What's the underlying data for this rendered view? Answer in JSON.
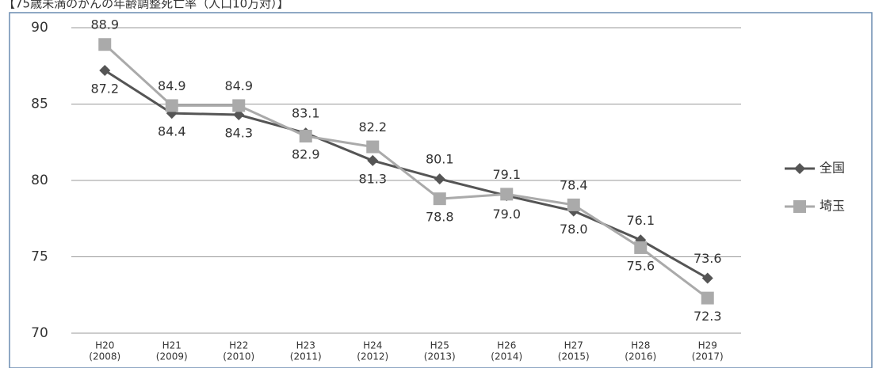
{
  "chart_data": {
    "type": "line",
    "title": "【75歳未満のがんの年齢調整死亡率（人口10万対）】",
    "categories": [
      [
        "H20",
        "(2008)"
      ],
      [
        "H21",
        "(2009)"
      ],
      [
        "H22",
        "(2010)"
      ],
      [
        "H23",
        "(2011)"
      ],
      [
        "H24",
        "(2012)"
      ],
      [
        "H25",
        "(2013)"
      ],
      [
        "H26",
        "(2014)"
      ],
      [
        "H27",
        "(2015)"
      ],
      [
        "H28",
        "(2016)"
      ],
      [
        "H29",
        "(2017)"
      ]
    ],
    "series": [
      {
        "name": "全国",
        "color": "#555555",
        "marker": "diamond",
        "values": [
          87.2,
          84.4,
          84.3,
          83.1,
          81.3,
          80.1,
          79.0,
          78.0,
          76.1,
          73.6
        ],
        "value_labels": [
          "87.2",
          "84.4",
          "84.3",
          "83.1",
          "81.3",
          "80.1",
          "79.0",
          "78.0",
          "76.1",
          "73.6"
        ]
      },
      {
        "name": "埼玉",
        "color": "#aaaaaa",
        "marker": "square",
        "values": [
          88.9,
          84.9,
          84.9,
          82.9,
          82.2,
          78.8,
          79.1,
          78.4,
          75.6,
          72.3
        ],
        "value_labels": [
          "88.9",
          "84.9",
          "84.9",
          "82.9",
          "82.2",
          "78.8",
          "79.1",
          "78.4",
          "75.6",
          "72.3"
        ]
      }
    ],
    "ylim": [
      70,
      90
    ],
    "yticks": [
      70,
      75,
      80,
      85,
      90
    ],
    "grid": true,
    "legend": "right"
  }
}
